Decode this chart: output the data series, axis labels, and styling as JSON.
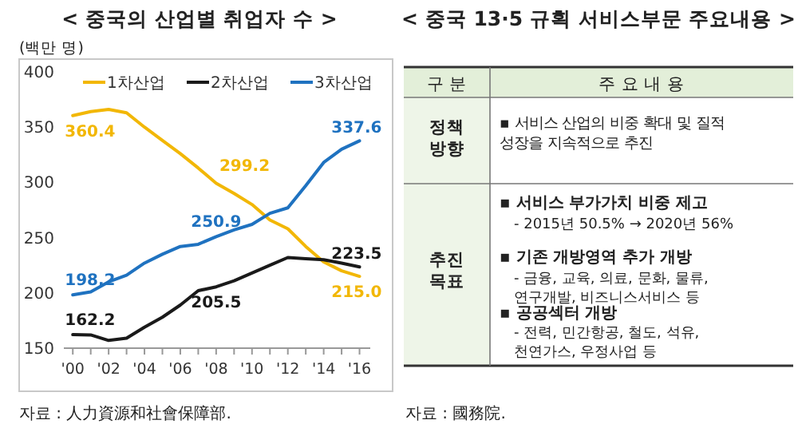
{
  "chart_data": [
    {
      "type": "line",
      "title": "< 중국의 산업별 취업자 수 >",
      "ylabel": "(백만 명)",
      "x": [
        2000,
        2001,
        2002,
        2003,
        2004,
        2005,
        2006,
        2007,
        2008,
        2009,
        2010,
        2011,
        2012,
        2013,
        2014,
        2015,
        2016
      ],
      "xlim": [
        1999.5,
        2016.6
      ],
      "xticks": [
        {
          "value": 2000,
          "label": "'00"
        },
        {
          "value": 2001,
          "label": null
        },
        {
          "value": 2002,
          "label": "'02"
        },
        {
          "value": 2003,
          "label": null
        },
        {
          "value": 2004,
          "label": "'04"
        },
        {
          "value": 2005,
          "label": null
        },
        {
          "value": 2006,
          "label": "'06"
        },
        {
          "value": 2007,
          "label": null
        },
        {
          "value": 2008,
          "label": "'08"
        },
        {
          "value": 2009,
          "label": null
        },
        {
          "value": 2010,
          "label": "'10"
        },
        {
          "value": 2011,
          "label": null
        },
        {
          "value": 2012,
          "label": "'12"
        },
        {
          "value": 2013,
          "label": null
        },
        {
          "value": 2014,
          "label": "'14"
        },
        {
          "value": 2015,
          "label": null
        },
        {
          "value": 2016,
          "label": "'16"
        }
      ],
      "ylim": [
        150,
        400
      ],
      "yticks": [
        150,
        200,
        250,
        300,
        350,
        400
      ],
      "legend": "top",
      "series": [
        {
          "name": "1차산업",
          "color": "#f2b705",
          "values": [
            360.4,
            364,
            366,
            363,
            350,
            338,
            326,
            313,
            299.2,
            290,
            280,
            266,
            258,
            242,
            228,
            220,
            215.0
          ],
          "value_labels": [
            "360.4",
            null,
            null,
            null,
            null,
            null,
            null,
            null,
            "299.2",
            null,
            null,
            null,
            null,
            null,
            null,
            null,
            "215.0"
          ]
        },
        {
          "name": "2차산업",
          "color": "#1a1a1a",
          "values": [
            162.2,
            162,
            157,
            159,
            169,
            178,
            189,
            202,
            205.5,
            211,
            218,
            225,
            232,
            231,
            230,
            227,
            223.5
          ],
          "value_labels": [
            "162.2",
            null,
            null,
            null,
            null,
            null,
            null,
            null,
            "205.5",
            null,
            null,
            null,
            null,
            null,
            null,
            null,
            "223.5"
          ]
        },
        {
          "name": "3차산업",
          "color": "#1f72c0",
          "values": [
            198.2,
            201,
            210,
            216,
            227,
            235,
            242,
            244,
            250.9,
            257,
            262,
            272,
            277,
            297,
            318,
            330,
            337.6
          ],
          "value_labels": [
            "198.2",
            null,
            null,
            null,
            null,
            null,
            null,
            null,
            "250.9",
            null,
            null,
            null,
            null,
            null,
            null,
            null,
            "337.6"
          ]
        }
      ],
      "annotations": [
        "자료 : 人力資源和社會保障部."
      ]
    },
    {
      "type": "other",
      "title": "< 중국 13·5 규획 서비스부문 주요내용 >",
      "annotations": [
        "구 분",
        "주 요 내 용",
        "정책\n방향",
        "▪ 서비스 산업의 비중 확대 및 질적\n성장을 지속적으로 추진",
        "추진\n목표",
        "▪ 서비스 부가가치 비중 제고",
        "- 2015년 50.5% → 2020년 56%",
        "▪ 기존 개방영역 추가 개방",
        "- 금융, 교육, 의료, 문화, 물류,\n연구개발, 비즈니스서비스 등",
        "▪ 공공섹터 개방",
        "- 전력, 민간항공, 철도, 석유,\n천연가스, 우정사업 등",
        "자료 : 國務院."
      ]
    }
  ]
}
